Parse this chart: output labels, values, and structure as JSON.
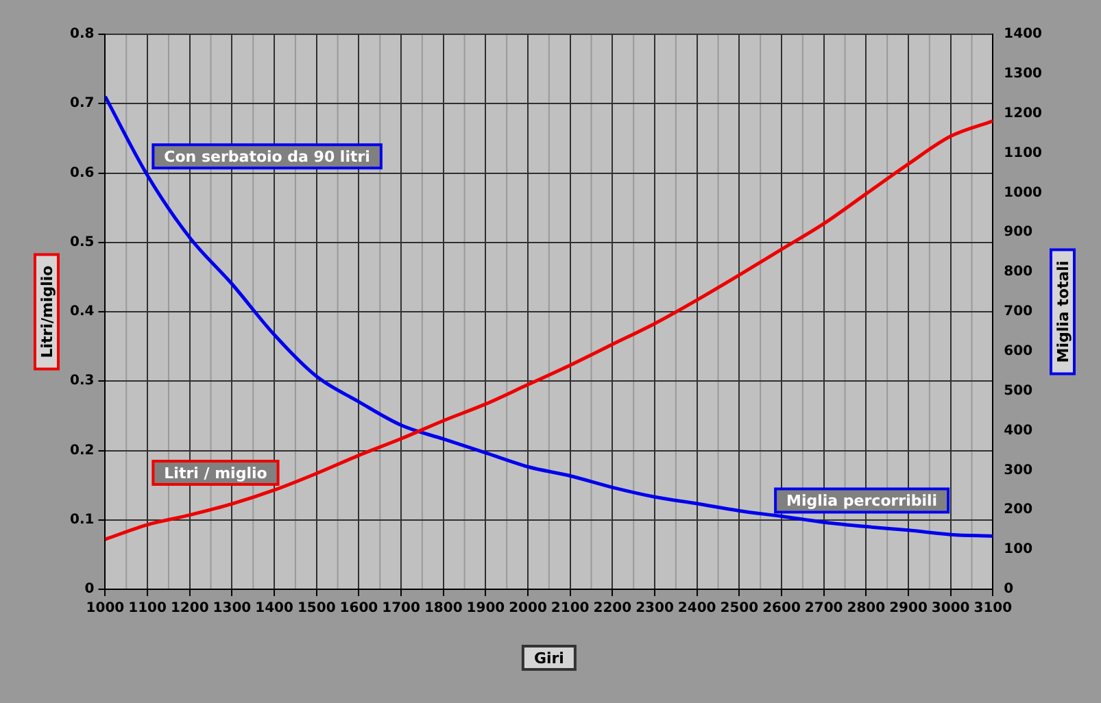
{
  "chart_data": {
    "type": "line",
    "xlabel": "Giri",
    "ylabel": "Litri/miglio",
    "y2label": "Miglia totali",
    "x": [
      1000,
      1100,
      1200,
      1300,
      1400,
      1500,
      1600,
      1700,
      1800,
      1900,
      2000,
      2100,
      2200,
      2300,
      2400,
      2500,
      2600,
      2700,
      2800,
      2900,
      3000,
      3100
    ],
    "series": [
      {
        "name": "Litri / miglio",
        "color": "#ee0000",
        "values": [
          0.072,
          0.093,
          0.107,
          0.123,
          0.143,
          0.167,
          0.193,
          0.217,
          0.243,
          0.267,
          0.295,
          0.323,
          0.353,
          0.383,
          0.417,
          0.453,
          0.49,
          0.527,
          0.57,
          0.613,
          0.653,
          0.675
        ]
      },
      {
        "name": "Miglia percorribili",
        "color": "#0000ee",
        "axis": "y2",
        "values": [
          1243,
          1044,
          887,
          770,
          642,
          537,
          473,
          414,
          379,
          344,
          309,
          286,
          257,
          233,
          216,
          198,
          184,
          169,
          158,
          149,
          138,
          134
        ]
      }
    ],
    "xlim": [
      1000,
      3100
    ],
    "xticks": [
      1000,
      1100,
      1200,
      1300,
      1400,
      1500,
      1600,
      1700,
      1800,
      1900,
      2000,
      2100,
      2200,
      2300,
      2400,
      2500,
      2600,
      2700,
      2800,
      2900,
      3000,
      3100
    ],
    "ylim": [
      0,
      0.8
    ],
    "yticks": [
      0,
      0.1,
      0.2,
      0.3,
      0.4,
      0.5,
      0.6,
      0.7,
      0.8
    ],
    "y2lim": [
      0,
      1400
    ],
    "y2ticks": [
      0,
      100,
      200,
      300,
      400,
      500,
      600,
      700,
      800,
      900,
      1000,
      1100,
      1200,
      1300,
      1400
    ],
    "annotations": [
      "Con serbatoio da 90 litri"
    ],
    "grid": true,
    "legend": false,
    "marker": "none",
    "line_style": "solid"
  }
}
